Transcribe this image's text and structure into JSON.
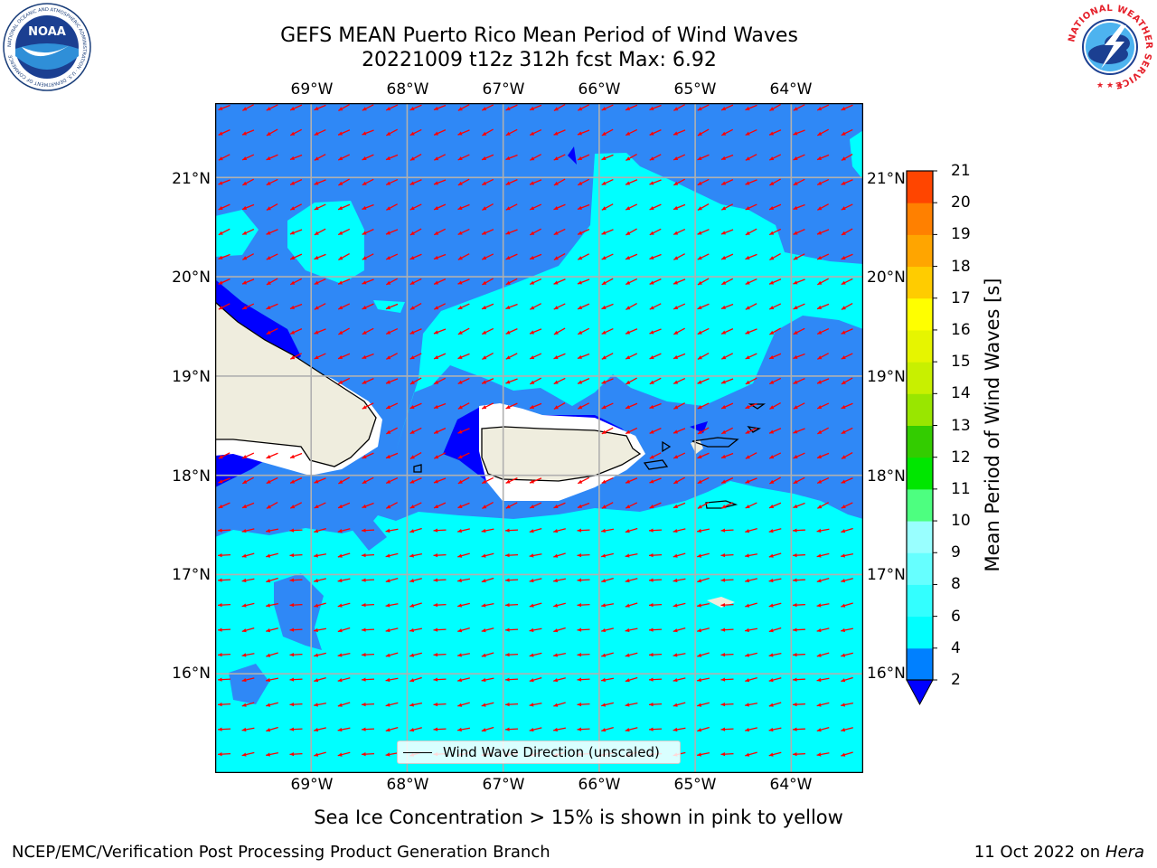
{
  "title": {
    "line1": "GEFS MEAN Puerto Rico Mean Period of Wind Waves",
    "line2": "20221009 t12z 312h fcst   Max: 6.92"
  },
  "map": {
    "lon_range": [
      -70.0,
      -63.25
    ],
    "lat_range": [
      15.0,
      21.75
    ],
    "lon_ticks": [
      "69°W",
      "68°W",
      "67°W",
      "66°W",
      "65°W",
      "64°W"
    ],
    "lon_values": [
      -69,
      -68,
      -67,
      -66,
      -65,
      -64
    ],
    "lat_ticks": [
      "21°N",
      "20°N",
      "19°N",
      "18°N",
      "17°N",
      "16°N"
    ],
    "lat_values": [
      21,
      20,
      19,
      18,
      17,
      16
    ],
    "grid": true,
    "arrow_color": "#ff0000",
    "land_color": "#efedde"
  },
  "colorbar": {
    "label": "Mean Period of Wind Waves [s]",
    "ticks": [
      "2",
      "4",
      "6",
      "8",
      "9",
      "10",
      "11",
      "12",
      "13",
      "14",
      "15",
      "16",
      "17",
      "18",
      "19",
      "20",
      "21"
    ],
    "levels": [
      2,
      4,
      6,
      8,
      9,
      10,
      11,
      12,
      13,
      14,
      15,
      16,
      17,
      18,
      19,
      20,
      21
    ],
    "colors": [
      "#0080ff",
      "#00ffff",
      "#33ffff",
      "#66ffff",
      "#99ffff",
      "#4dff80",
      "#00e600",
      "#33cc00",
      "#99e600",
      "#c8f000",
      "#e6f500",
      "#ffff00",
      "#ffcc00",
      "#ffa500",
      "#ff8000",
      "#ff4500",
      "#ff0000"
    ],
    "under_color": "#0000ff"
  },
  "legend": {
    "label": "Wind Wave Direction (unscaled)"
  },
  "note": "Sea Ice Concentration > 15% is shown in pink to yellow",
  "footer": {
    "left": "NCEP/EMC/Verification Post Processing Product Generation Branch",
    "right_prefix": "11 Oct 2022 on ",
    "right_italic": "Hera"
  },
  "logos": {
    "left": {
      "text": "NOAA",
      "ring_text": "NATIONAL OCEANIC AND ATMOSPHERIC ADMINISTRATION · U.S. DEPARTMENT OF COMMERCE"
    },
    "right": {
      "ring_text": "NATIONAL WEATHER SERVICE"
    }
  }
}
